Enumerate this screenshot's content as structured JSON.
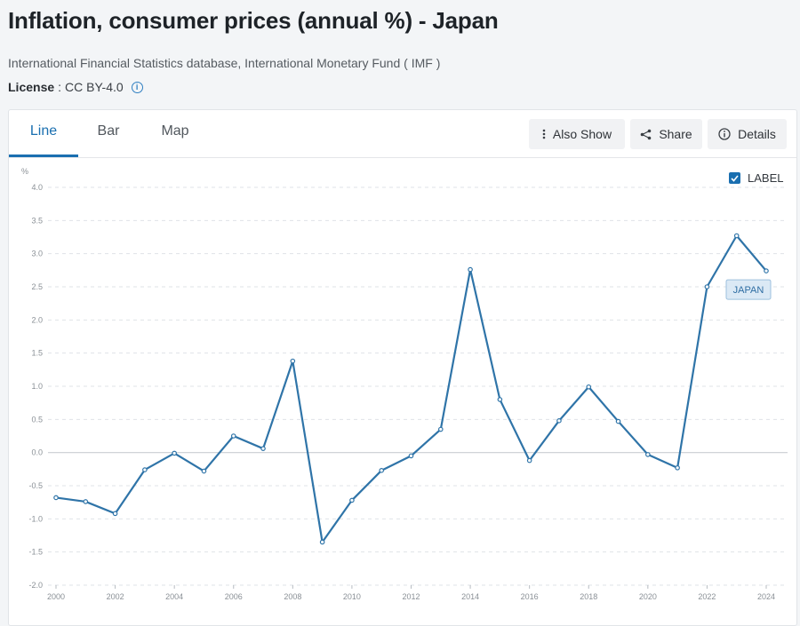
{
  "header": {
    "title": "Inflation, consumer prices (annual %) - Japan",
    "source": "International Financial Statistics database, International Monetary Fund ( IMF )",
    "license_label": "License",
    "license_value": "CC BY-4.0"
  },
  "tabs": [
    {
      "label": "Line",
      "active": true
    },
    {
      "label": "Bar",
      "active": false
    },
    {
      "label": "Map",
      "active": false
    }
  ],
  "toolbar": {
    "also_show": "Also Show",
    "share": "Share",
    "details": "Details"
  },
  "legend_toggle": {
    "label": "LABEL",
    "checked": true
  },
  "colors": {
    "accent": "#1a6fb0",
    "series": "#2f74a8",
    "grid": "#dfe3e7"
  },
  "chart_data": {
    "type": "line",
    "ylabel": "%",
    "ylim": [
      -2.0,
      4.0
    ],
    "y_ticks": [
      "4.0",
      "3.5",
      "3.0",
      "2.5",
      "2.0",
      "1.5",
      "1.0",
      "0.5",
      "0.0",
      "-0.5",
      "-1.0",
      "-1.5",
      "-2.0"
    ],
    "x_ticks": [
      "2000",
      "2002",
      "2004",
      "2006",
      "2008",
      "2010",
      "2012",
      "2014",
      "2016",
      "2018",
      "2020",
      "2022",
      "2024"
    ],
    "grid": true,
    "series": [
      {
        "name": "JAPAN",
        "x": [
          2000,
          2001,
          2002,
          2003,
          2004,
          2005,
          2006,
          2007,
          2008,
          2009,
          2010,
          2011,
          2012,
          2013,
          2014,
          2015,
          2016,
          2017,
          2018,
          2019,
          2020,
          2021,
          2022,
          2023,
          2024
        ],
        "values": [
          -0.68,
          -0.74,
          -0.92,
          -0.26,
          -0.01,
          -0.28,
          0.25,
          0.06,
          1.38,
          -1.35,
          -0.72,
          -0.27,
          -0.05,
          0.35,
          2.76,
          0.8,
          -0.12,
          0.48,
          0.99,
          0.47,
          -0.03,
          -0.23,
          2.5,
          3.27,
          2.74
        ]
      }
    ]
  }
}
